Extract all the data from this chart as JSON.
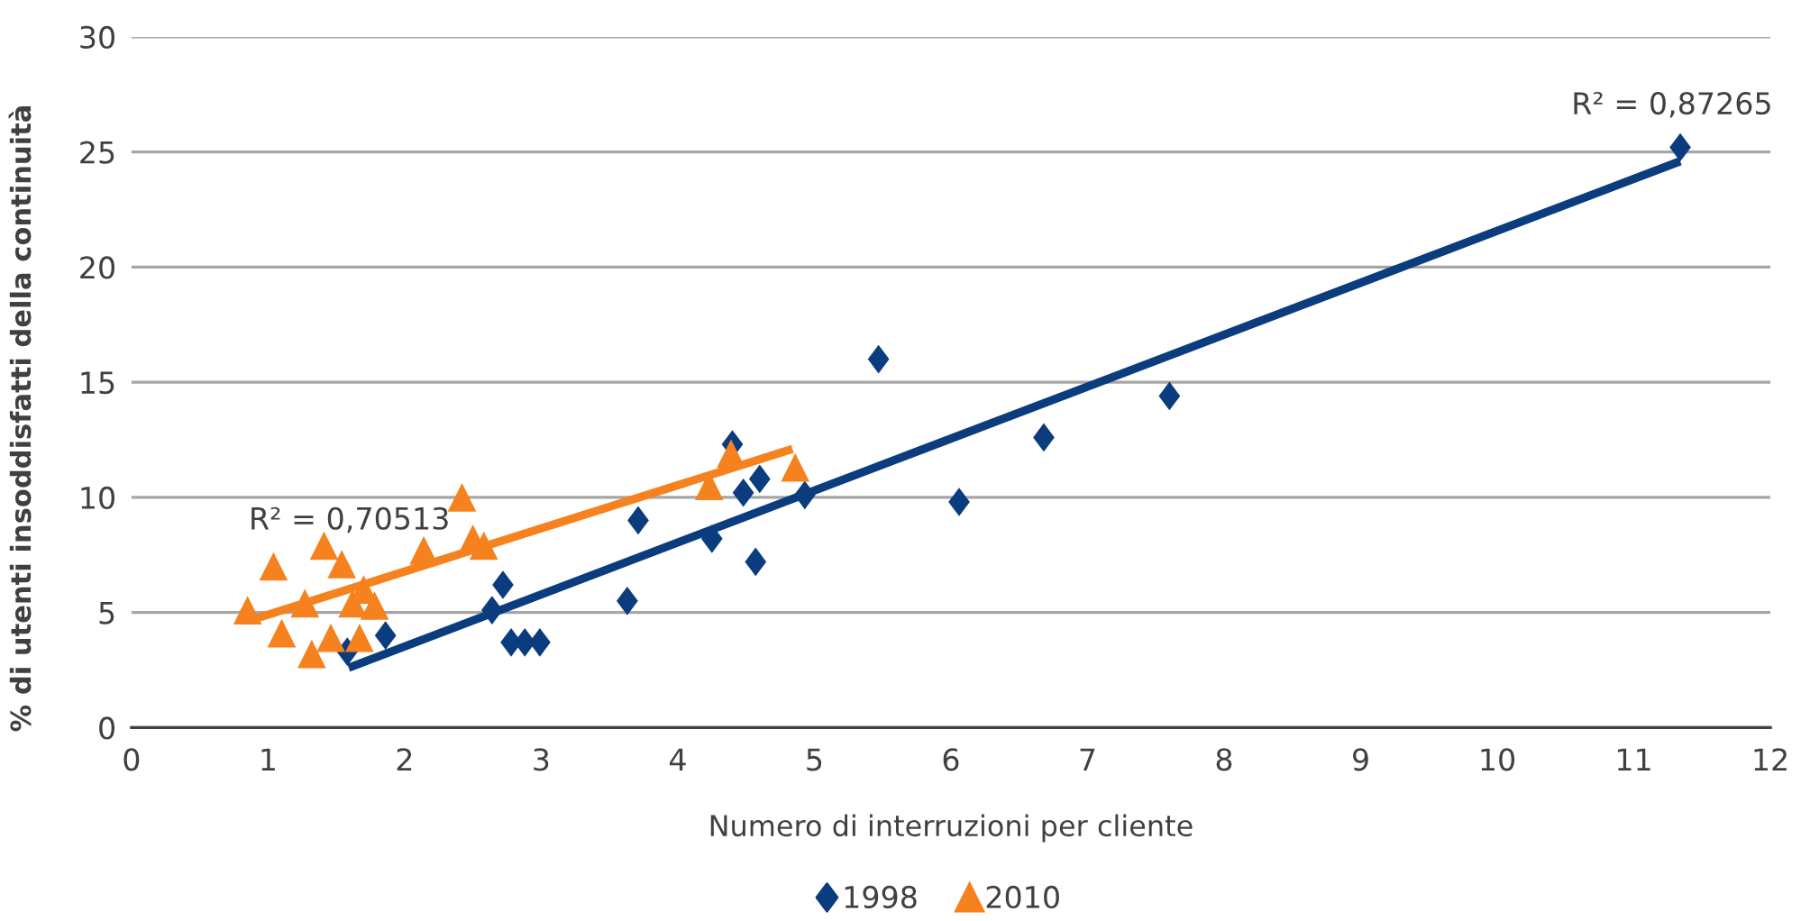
{
  "chart_data": {
    "type": "scatter",
    "xlabel": "Numero di interruzioni per cliente",
    "ylabel": "% di utenti insoddisfatti della continuità",
    "xlim": [
      0,
      12
    ],
    "xticks": [
      0,
      1,
      2,
      3,
      4,
      5,
      6,
      7,
      8,
      9,
      10,
      11,
      12
    ],
    "ylim": [
      0,
      30
    ],
    "yticks": [
      0,
      5,
      10,
      15,
      20,
      25,
      30
    ],
    "grid": "y",
    "legend": "bottom",
    "series": [
      {
        "name": "1998",
        "marker": "diamond",
        "color": "#0b3c7d",
        "x": [
          1.58,
          1.86,
          2.64,
          2.72,
          2.78,
          2.88,
          2.99,
          3.63,
          3.71,
          4.25,
          4.4,
          4.48,
          4.57,
          4.6,
          4.93,
          5.47,
          6.06,
          6.68,
          7.6,
          11.34
        ],
        "values": [
          3.3,
          4.0,
          5.1,
          6.2,
          3.7,
          3.7,
          3.7,
          5.5,
          9.0,
          8.2,
          12.3,
          10.2,
          7.2,
          10.8,
          10.1,
          16.0,
          9.8,
          12.6,
          14.4,
          25.2
        ]
      },
      {
        "name": "2010",
        "marker": "triangle",
        "color": "#f5821f",
        "x": [
          0.85,
          1.04,
          1.1,
          1.27,
          1.32,
          1.41,
          1.46,
          1.54,
          1.62,
          1.67,
          1.7,
          1.78,
          2.14,
          2.42,
          2.5,
          2.58,
          4.23,
          4.39,
          4.86
        ],
        "values": [
          5.1,
          7.0,
          4.1,
          5.4,
          3.2,
          7.9,
          3.9,
          7.1,
          5.4,
          3.9,
          6.0,
          5.3,
          7.7,
          10.0,
          8.2,
          7.9,
          10.5,
          11.9,
          11.3
        ]
      },
      {
        "type": "line",
        "marker": "none",
        "line_style": "solid",
        "color": "#0b3c7d",
        "x": [
          1.59,
          11.34
        ],
        "values": [
          2.6,
          24.6
        ]
      },
      {
        "type": "line",
        "marker": "none",
        "line_style": "solid",
        "color": "#f5821f",
        "x": [
          0.89,
          4.84
        ],
        "values": [
          4.7,
          12.1
        ]
      }
    ],
    "annotations": [
      "R² = 0,87265",
      "R² = 0,70513"
    ]
  }
}
